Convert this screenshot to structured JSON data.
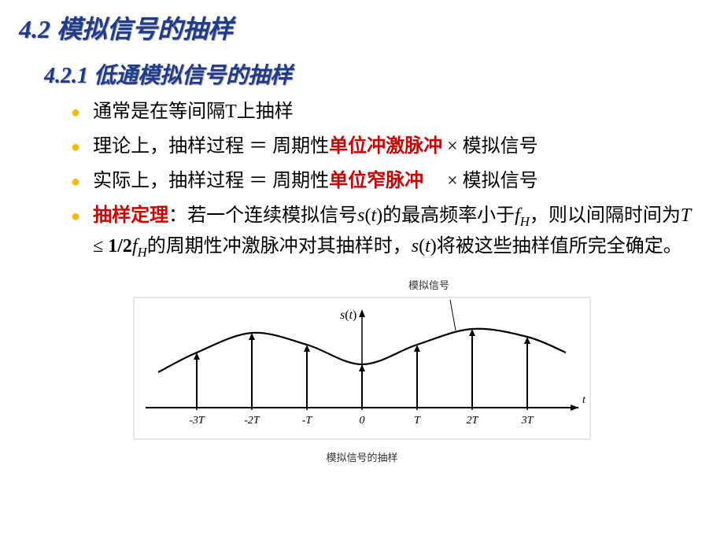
{
  "heading_main": "4.2 模拟信号的抽样",
  "heading_sub": "4.2.1 低通模拟信号的抽样",
  "bullets": {
    "b1": "通常是在等间隔T上抽样",
    "b2_pre": "理论上，抽样过程 ＝ 周期性",
    "b2_red": "单位冲激脉冲",
    "b2_post": " × 模拟信号",
    "b3_pre": "实际上，抽样过程 ＝ 周期性",
    "b3_red": "单位窄脉冲",
    "b3_post": "　 × 模拟信号",
    "b4_red": "抽样定理",
    "b4_part1": "：若一个连续模拟信号",
    "b4_st": "s",
    "b4_paren_open": "(",
    "b4_t": "t",
    "b4_paren_close": ")",
    "b4_part2": "的最高频率小于",
    "b4_f": "f",
    "b4_H": "H",
    "b4_part3": "，则以间隔时间为",
    "b4_T": "T",
    "b4_le": " ≤ ",
    "b4_half": "1/2",
    "b4_part4": "的周期性冲激脉冲对其抽样时，",
    "b4_part5": "将被这些抽样值所完全确定。"
  },
  "diagram": {
    "title": "模拟信号",
    "subtitle": "模拟信号的抽样",
    "st_label_s": "s",
    "st_label_t": "t",
    "axis_label": "t",
    "ticks": [
      "-3T",
      "-2T",
      "-T",
      "0",
      "T",
      "2T",
      "3T"
    ],
    "spacing": 70,
    "curve_color": "#000000",
    "arrow_color": "#000000",
    "axis_color": "#000000",
    "tick_font": "italic 14px Times New Roman",
    "curve_points": [
      {
        "x": -3,
        "y": 0.7
      },
      {
        "x": -2,
        "y": 0.95
      },
      {
        "x": -1,
        "y": 0.8
      },
      {
        "x": 0,
        "y": 0.55
      },
      {
        "x": 1,
        "y": 0.8
      },
      {
        "x": 2,
        "y": 1.0
      },
      {
        "x": 3,
        "y": 0.9
      }
    ]
  },
  "colors": {
    "heading": "#1f3b8a",
    "bullet_dot": "#f5b800",
    "red": "#cc0000",
    "text": "#000000",
    "bg": "#ffffff"
  }
}
